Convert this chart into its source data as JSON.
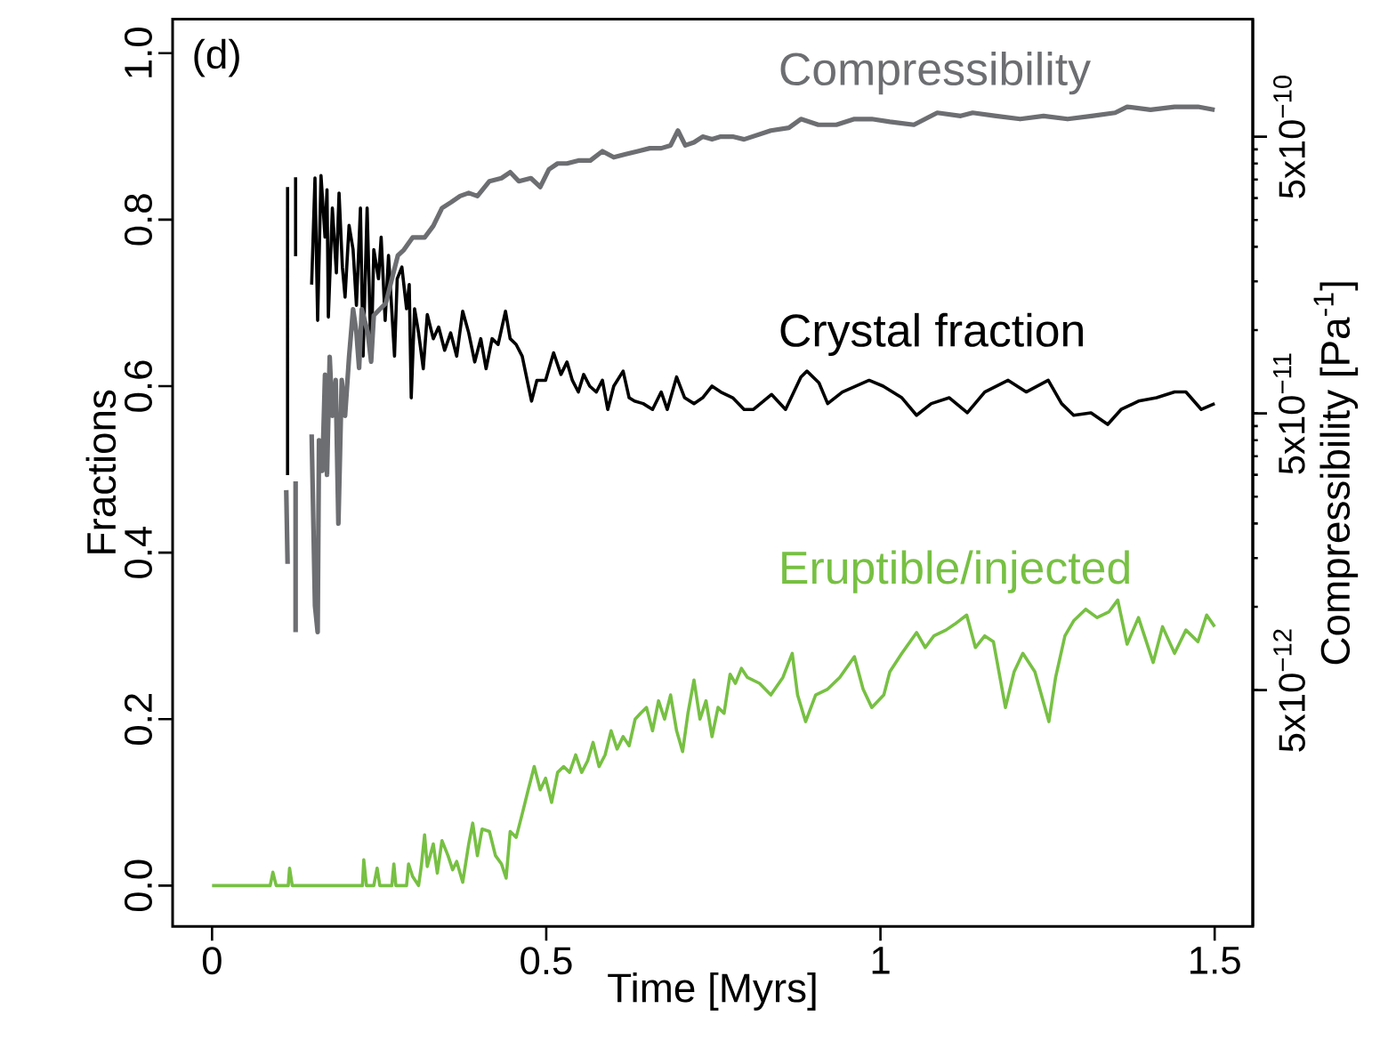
{
  "chart_data": {
    "type": "line",
    "xlabel": "Time [Myrs]",
    "ylabel": "Fractions",
    "y2label": "Compressibility [Pa$^{-1}$]",
    "annotations": [
      "(d)"
    ],
    "xlim": [
      -0.059,
      1.557
    ],
    "ylim": [
      -0.049,
      1.041
    ],
    "y2lim": [
      7e-13,
      1.33e-09
    ],
    "log": "y2",
    "xticks": [
      0,
      0.5,
      1,
      1.5
    ],
    "yticks": [
      {
        "value": 0,
        "label": "0.0"
      },
      {
        "value": 0.2,
        "label": "0.2"
      },
      {
        "value": 0.4,
        "label": "0.4"
      },
      {
        "value": 0.6,
        "label": "0.6"
      },
      {
        "value": 0.8,
        "label": "0.8"
      },
      {
        "value": 1,
        "label": "1.0"
      }
    ],
    "y2ticks": [
      {
        "value": 5e-12,
        "label": "5x10$^{−12}$"
      },
      {
        "value": 5e-11,
        "label": "5x10$^{−11}$"
      },
      {
        "value": 5e-10,
        "label": "5x10$^{−10}$"
      }
    ],
    "series": [
      {
        "name": "Compressibility",
        "color": "#6d6e71",
        "axis": "y2",
        "x": [
          0.111,
          0.113,
          null,
          0.125,
          0.125,
          null,
          0.149,
          0.154,
          0.158,
          0.16,
          0.165,
          0.169,
          0.172,
          0.176,
          0.18,
          0.185,
          0.189,
          0.194,
          0.199,
          0.205,
          0.211,
          0.216,
          0.22,
          0.224,
          0.233,
          0.238,
          0.242,
          0.251,
          0.26,
          0.269,
          0.278,
          0.287,
          0.3,
          0.318,
          0.331,
          0.344,
          0.358,
          0.371,
          0.384,
          0.397,
          0.415,
          0.433,
          0.446,
          0.459,
          0.477,
          0.491,
          0.504,
          0.517,
          0.531,
          0.548,
          0.566,
          0.584,
          0.601,
          0.619,
          0.637,
          0.655,
          0.672,
          0.686,
          0.697,
          0.708,
          0.721,
          0.734,
          0.748,
          0.761,
          0.779,
          0.796,
          0.836,
          0.863,
          0.881,
          0.907,
          0.934,
          0.961,
          0.987,
          1.014,
          1.05,
          1.085,
          1.12,
          1.138,
          1.173,
          1.209,
          1.244,
          1.28,
          1.316,
          1.351,
          1.369,
          1.404,
          1.44,
          1.475,
          1.5
        ],
        "values": [
          2.64e-11,
          1.43e-11,
          null,
          2.84e-11,
          8.1e-12,
          null,
          4.2e-11,
          1.01e-11,
          8.1e-12,
          4e-11,
          3.1e-11,
          6.9e-11,
          3e-11,
          8e-11,
          4.9e-11,
          6.6e-11,
          2e-11,
          6.6e-11,
          4.9e-11,
          8e-11,
          1.19e-10,
          9.8e-11,
          7.3e-11,
          1.19e-10,
          9.8e-11,
          7.7e-11,
          1.13e-10,
          1.19e-10,
          1.25e-10,
          1.53e-10,
          1.86e-10,
          1.95e-10,
          2.16e-10,
          2.16e-10,
          2.38e-10,
          2.76e-10,
          2.9e-10,
          3.05e-10,
          3.13e-10,
          3.05e-10,
          3.45e-10,
          3.54e-10,
          3.72e-10,
          3.45e-10,
          3.54e-10,
          3.29e-10,
          3.81e-10,
          4e-10,
          4e-10,
          4.1e-10,
          4.1e-10,
          4.43e-10,
          4.21e-10,
          4.32e-10,
          4.43e-10,
          4.54e-10,
          4.54e-10,
          4.65e-10,
          5.26e-10,
          4.65e-10,
          4.77e-10,
          5e-10,
          4.89e-10,
          5e-10,
          5e-10,
          4.89e-10,
          5.26e-10,
          5.38e-10,
          5.79e-10,
          5.52e-10,
          5.52e-10,
          5.79e-10,
          5.79e-10,
          5.66e-10,
          5.52e-10,
          6.1e-10,
          5.94e-10,
          6.1e-10,
          5.94e-10,
          5.79e-10,
          5.94e-10,
          5.79e-10,
          5.94e-10,
          6.1e-10,
          6.41e-10,
          6.25e-10,
          6.41e-10,
          6.41e-10,
          6.25e-10
        ]
      },
      {
        "name": "Crystal fraction",
        "color": "#000000",
        "x": [
          0.113,
          0.113,
          null,
          0.125,
          0.125,
          null,
          0.149,
          0.154,
          0.158,
          0.163,
          0.169,
          0.172,
          0.174,
          0.18,
          0.186,
          0.19,
          0.195,
          0.199,
          0.205,
          0.211,
          0.216,
          0.222,
          0.226,
          0.232,
          0.238,
          0.242,
          0.249,
          0.253,
          0.259,
          0.264,
          0.273,
          0.277,
          0.284,
          0.291,
          0.295,
          0.298,
          0.303,
          0.309,
          0.316,
          0.322,
          0.331,
          0.339,
          0.348,
          0.357,
          0.366,
          0.375,
          0.384,
          0.393,
          0.402,
          0.41,
          0.419,
          0.428,
          0.439,
          0.446,
          0.455,
          0.464,
          0.478,
          0.486,
          0.499,
          0.511,
          0.522,
          0.531,
          0.539,
          0.548,
          0.556,
          0.565,
          0.575,
          0.584,
          0.592,
          0.601,
          0.615,
          0.624,
          0.632,
          0.645,
          0.659,
          0.672,
          0.681,
          0.695,
          0.707,
          0.721,
          0.734,
          0.748,
          0.761,
          0.779,
          0.796,
          0.81,
          0.837,
          0.858,
          0.881,
          0.89,
          0.908,
          0.921,
          0.943,
          0.983,
          1.004,
          1.032,
          1.054,
          1.076,
          1.103,
          1.13,
          1.156,
          1.191,
          1.218,
          1.251,
          1.271,
          1.289,
          1.315,
          1.34,
          1.36,
          1.386,
          1.413,
          1.44,
          1.457,
          1.48,
          1.5
        ],
        "values": [
          0.493,
          0.839,
          null,
          0.756,
          0.851,
          null,
          0.722,
          0.85,
          0.679,
          0.853,
          0.779,
          0.836,
          0.683,
          0.814,
          0.736,
          0.832,
          0.743,
          0.707,
          0.793,
          0.764,
          0.697,
          0.814,
          0.636,
          0.814,
          0.629,
          0.764,
          0.729,
          0.779,
          0.679,
          0.757,
          0.636,
          0.729,
          0.743,
          0.693,
          0.722,
          0.586,
          0.693,
          0.664,
          0.621,
          0.686,
          0.657,
          0.671,
          0.643,
          0.664,
          0.636,
          0.69,
          0.664,
          0.629,
          0.657,
          0.621,
          0.657,
          0.65,
          0.69,
          0.657,
          0.65,
          0.636,
          0.582,
          0.607,
          0.607,
          0.64,
          0.614,
          0.629,
          0.607,
          0.593,
          0.614,
          0.6,
          0.593,
          0.607,
          0.572,
          0.6,
          0.618,
          0.586,
          0.582,
          0.579,
          0.572,
          0.593,
          0.572,
          0.611,
          0.586,
          0.579,
          0.586,
          0.6,
          0.593,
          0.586,
          0.572,
          0.572,
          0.59,
          0.572,
          0.611,
          0.618,
          0.604,
          0.579,
          0.593,
          0.607,
          0.6,
          0.586,
          0.565,
          0.579,
          0.586,
          0.568,
          0.593,
          0.607,
          0.593,
          0.607,
          0.579,
          0.565,
          0.568,
          0.554,
          0.572,
          0.582,
          0.586,
          0.593,
          0.593,
          0.572,
          0.579
        ]
      },
      {
        "name": "Eruptible/injected",
        "color": "#77c043",
        "x": [
          0,
          0.087,
          0.091,
          0.096,
          0.114,
          0.116,
          0.12,
          0.225,
          0.227,
          0.231,
          0.242,
          0.247,
          0.251,
          0.269,
          0.272,
          0.275,
          0.291,
          0.294,
          0.3,
          0.309,
          0.313,
          0.318,
          0.322,
          0.331,
          0.337,
          0.344,
          0.353,
          0.36,
          0.366,
          0.375,
          0.384,
          0.39,
          0.397,
          0.404,
          0.415,
          0.424,
          0.433,
          0.44,
          0.446,
          0.455,
          0.464,
          0.473,
          0.482,
          0.491,
          0.499,
          0.508,
          0.517,
          0.526,
          0.535,
          0.544,
          0.553,
          0.562,
          0.57,
          0.579,
          0.588,
          0.597,
          0.606,
          0.615,
          0.624,
          0.633,
          0.641,
          0.65,
          0.659,
          0.668,
          0.677,
          0.686,
          0.695,
          0.704,
          0.712,
          0.721,
          0.73,
          0.739,
          0.748,
          0.757,
          0.766,
          0.775,
          0.783,
          0.792,
          0.801,
          0.819,
          0.836,
          0.854,
          0.868,
          0.876,
          0.888,
          0.903,
          0.921,
          0.939,
          0.961,
          0.974,
          0.987,
          1.005,
          1.014,
          1.032,
          1.054,
          1.067,
          1.08,
          1.098,
          1.111,
          1.129,
          1.142,
          1.156,
          1.169,
          1.187,
          1.2,
          1.213,
          1.231,
          1.252,
          1.262,
          1.276,
          1.289,
          1.307,
          1.324,
          1.342,
          1.355,
          1.369,
          1.386,
          1.408,
          1.422,
          1.44,
          1.457,
          1.475,
          1.488,
          1.5
        ],
        "values": [
          0,
          0,
          0.016,
          0,
          0,
          0.021,
          0,
          0,
          0.031,
          0,
          0,
          0.021,
          0,
          0,
          0.026,
          0,
          0,
          0.026,
          0.011,
          0,
          0.023,
          0.061,
          0.023,
          0.05,
          0.015,
          0.054,
          0.036,
          0.019,
          0.029,
          0.004,
          0.05,
          0.075,
          0.036,
          0.068,
          0.065,
          0.036,
          0.026,
          0.009,
          0.065,
          0.058,
          0.086,
          0.115,
          0.143,
          0.115,
          0.129,
          0.1,
          0.136,
          0.143,
          0.136,
          0.157,
          0.136,
          0.15,
          0.172,
          0.143,
          0.157,
          0.186,
          0.164,
          0.179,
          0.168,
          0.2,
          0.207,
          0.214,
          0.186,
          0.222,
          0.2,
          0.229,
          0.186,
          0.161,
          0.207,
          0.247,
          0.2,
          0.222,
          0.179,
          0.214,
          0.207,
          0.254,
          0.243,
          0.261,
          0.25,
          0.243,
          0.229,
          0.25,
          0.279,
          0.229,
          0.197,
          0.229,
          0.236,
          0.25,
          0.275,
          0.236,
          0.214,
          0.229,
          0.257,
          0.279,
          0.304,
          0.286,
          0.3,
          0.307,
          0.314,
          0.325,
          0.286,
          0.3,
          0.293,
          0.214,
          0.257,
          0.279,
          0.257,
          0.197,
          0.25,
          0.3,
          0.318,
          0.332,
          0.322,
          0.329,
          0.343,
          0.29,
          0.322,
          0.268,
          0.311,
          0.279,
          0.307,
          0.293,
          0.325,
          0.311
        ]
      }
    ]
  }
}
